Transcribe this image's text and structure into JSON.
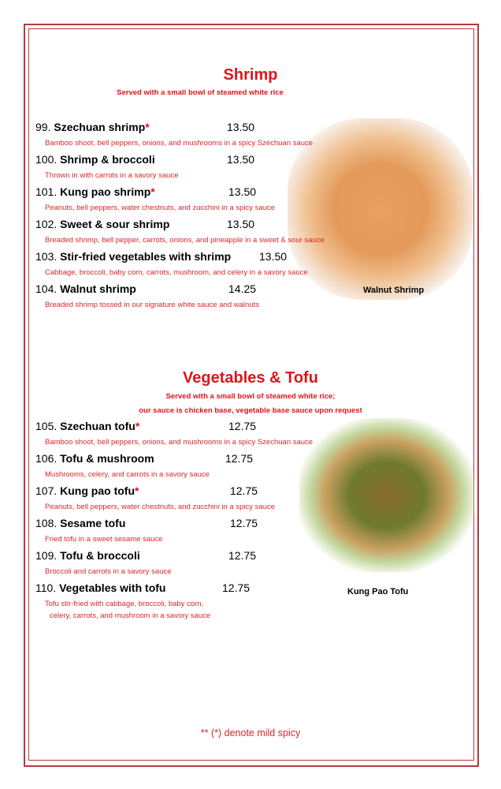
{
  "sections": [
    {
      "title": "Shrimp",
      "subtitle": [
        "Served with a small bowl of steamed white rice"
      ],
      "image_caption": "Walnut Shrimp",
      "items": [
        {
          "num": "99.",
          "name": "Szechuan shrimp",
          "spicy": "*",
          "price": "13.50",
          "desc": "Bamboo shoot, bell peppers, onions, and mushrooms in a spicy Szechuan sauce"
        },
        {
          "num": "100.",
          "name": "Shrimp & broccoli",
          "spicy": "",
          "price": "13.50",
          "desc": "Thrown in with carrots in a savory sauce"
        },
        {
          "num": "101.",
          "name": "Kung pao shrimp",
          "spicy": "*",
          "price": "13.50",
          "desc": "Peanuts, bell peppers, water chestnuts, and zucchini in a spicy sauce"
        },
        {
          "num": "102.",
          "name": "Sweet & sour shrimp",
          "spicy": "",
          "price": "13.50",
          "desc": "Breaded shrimp, bell pepper, carrots, onions, and pineapple in a sweet & sour sauce"
        },
        {
          "num": "103.",
          "name": "Stir-fried vegetables with shrimp",
          "spicy": "",
          "price": "13.50",
          "desc": "Cabbage, broccoli, baby corn, carrots, mushroom, and celery in a savory sauce"
        },
        {
          "num": "104.",
          "name": "Walnut shrimp",
          "spicy": "",
          "price": "14.25",
          "desc": "Breaded shrimp tossed in our signature white sauce and walnuts"
        }
      ]
    },
    {
      "title": "Vegetables & Tofu",
      "subtitle": [
        "Served with a small bowl of steamed white rice;",
        "our sauce is chicken base, vegetable base sauce upon request"
      ],
      "image_caption": "Kung Pao Tofu",
      "items": [
        {
          "num": "105.",
          "name": "Szechuan tofu",
          "spicy": "*",
          "price": "12.75",
          "desc": "Bamboo shoot, bell peppers, onions, and mushrooms in a spicy Szechuan sauce"
        },
        {
          "num": "106.",
          "name": "Tofu & mushroom",
          "spicy": "",
          "price": "12.75",
          "desc": "Mushrooms, celery, and carrots in a savory sauce"
        },
        {
          "num": "107.",
          "name": "Kung pao tofu",
          "spicy": "*",
          "price": "12.75",
          "desc": "Peanuts, bell peppers, water chestnuts, and zucchini in a spicy sauce"
        },
        {
          "num": "108.",
          "name": "Sesame tofu",
          "spicy": "",
          "price": "12.75",
          "desc": "Fried tofu in a sweet sesame sauce"
        },
        {
          "num": "109.",
          "name": "Tofu & broccoli",
          "spicy": "",
          "price": "12.75",
          "desc": "Broccoli and carrots in a savory sauce"
        },
        {
          "num": "110.",
          "name": "Vegetables with tofu",
          "spicy": "",
          "price": "12.75",
          "desc": "Tofu stir-fried with cabbage, broccoli, baby corn,",
          "desc2": "celery, carrots, and mushroom  in a savory sauce"
        }
      ]
    }
  ],
  "footer": "** (*) denote mild spicy"
}
